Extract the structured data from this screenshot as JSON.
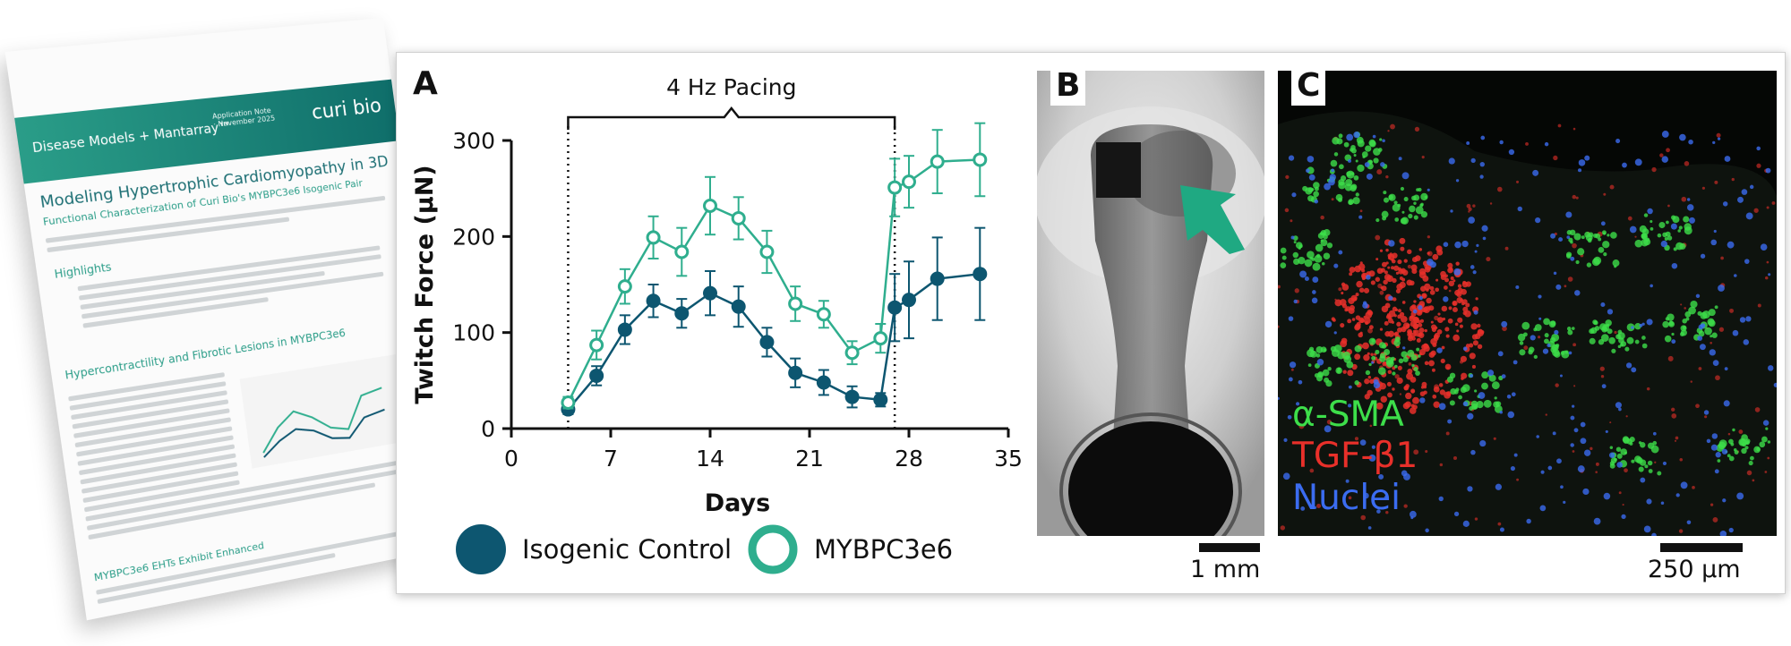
{
  "document": {
    "band_text": "Disease Models + Mantarray™",
    "logo": "curi bio",
    "note": "Application Note · November 2025",
    "title": "Modeling Hypertrophic Cardiomyopathy in 3D",
    "subtitle": "Functional Characterization of Curi Bio's MYBPC3e6 Isogenic Pair",
    "highlights": "Highlights",
    "section1": "Hypercontractility and Fibrotic Lesions in MYBPC3e6",
    "section2": "MYBPC3e6 EHTs Exhibit Enhanced"
  },
  "panels": {
    "a_label": "A",
    "b_label": "B",
    "c_label": "C"
  },
  "chart_data": {
    "type": "line",
    "xlabel": "Days",
    "ylabel": "Twitch Force (µN)",
    "xlim": [
      0,
      35
    ],
    "ylim": [
      0,
      300
    ],
    "xticks": [
      0,
      7,
      14,
      21,
      28,
      35
    ],
    "yticks": [
      0,
      100,
      200,
      300
    ],
    "annotation": {
      "text": "4 Hz Pacing",
      "from_day": 4,
      "to_day": 27
    },
    "legend_position": "bottom",
    "series": [
      {
        "name": "Isogenic Control",
        "color": "#0d5670",
        "marker": "filled-circle",
        "x": [
          4,
          6,
          8,
          10,
          12,
          14,
          16,
          18,
          20,
          22,
          24,
          26,
          27,
          28,
          30,
          33
        ],
        "y": [
          20,
          55,
          103,
          133,
          120,
          141,
          127,
          90,
          58,
          48,
          33,
          30,
          126,
          134,
          156,
          161
        ],
        "err": [
          5,
          10,
          15,
          17,
          15,
          23,
          21,
          15,
          15,
          13,
          11,
          7,
          35,
          40,
          43,
          48
        ]
      },
      {
        "name": "MYBPC3e6",
        "color": "#2fae8e",
        "marker": "open-circle",
        "x": [
          4,
          6,
          8,
          10,
          12,
          14,
          16,
          18,
          20,
          22,
          24,
          26,
          27,
          28,
          30,
          33
        ],
        "y": [
          27,
          87,
          148,
          199,
          184,
          232,
          219,
          184,
          130,
          119,
          79,
          94,
          251,
          257,
          278,
          280
        ],
        "err": [
          6,
          15,
          18,
          22,
          25,
          30,
          22,
          22,
          18,
          14,
          12,
          15,
          30,
          27,
          33,
          38
        ]
      }
    ]
  },
  "panel_b": {
    "scale_label": "1 mm",
    "arrow_color": "#1fa982"
  },
  "panel_c": {
    "scale_label": "250 µm",
    "stains": [
      {
        "name": "α-SMA",
        "color": "#3dde4a"
      },
      {
        "name": "TGF-β1",
        "color": "#e8302a"
      },
      {
        "name": "Nuclei",
        "color": "#3b6cf0"
      }
    ]
  }
}
